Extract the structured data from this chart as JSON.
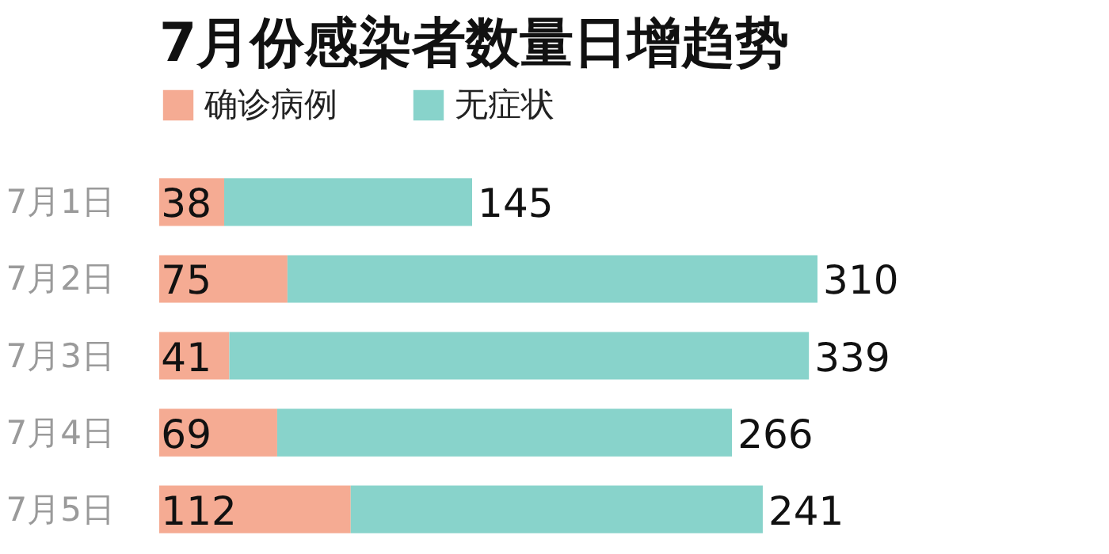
{
  "chart_data": {
    "type": "bar",
    "orientation": "horizontal",
    "stacked": true,
    "title": "7月份感染者数量日增趋势",
    "categories": [
      "7月1日",
      "7月2日",
      "7月3日",
      "7月4日",
      "7月5日"
    ],
    "series": [
      {
        "name": "确诊病例",
        "color": "#f5ab93",
        "values": [
          38,
          75,
          41,
          69,
          112
        ]
      },
      {
        "name": "无症状",
        "color": "#88d3cb",
        "values": [
          145,
          310,
          339,
          266,
          241
        ]
      }
    ],
    "data_labels": true,
    "legend": "top left",
    "grid": false
  }
}
